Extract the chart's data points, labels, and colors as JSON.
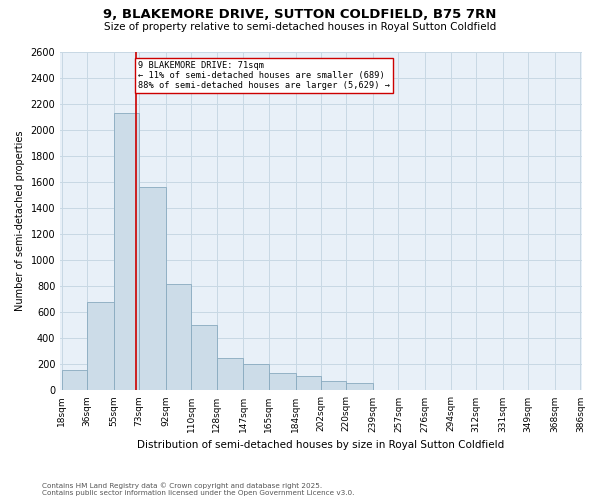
{
  "title": "9, BLAKEMORE DRIVE, SUTTON COLDFIELD, B75 7RN",
  "subtitle": "Size of property relative to semi-detached houses in Royal Sutton Coldfield",
  "xlabel": "Distribution of semi-detached houses by size in Royal Sutton Coldfield",
  "ylabel": "Number of semi-detached properties",
  "bin_labels": [
    "18sqm",
    "36sqm",
    "55sqm",
    "73sqm",
    "92sqm",
    "110sqm",
    "128sqm",
    "147sqm",
    "165sqm",
    "184sqm",
    "202sqm",
    "220sqm",
    "239sqm",
    "257sqm",
    "276sqm",
    "294sqm",
    "312sqm",
    "331sqm",
    "349sqm",
    "368sqm",
    "386sqm"
  ],
  "bin_left_edges": [
    18,
    36,
    55,
    73,
    92,
    110,
    128,
    147,
    165,
    184,
    202,
    220,
    239,
    257,
    276,
    294,
    312,
    331,
    349,
    368
  ],
  "bin_widths": [
    18,
    19,
    18,
    19,
    18,
    18,
    19,
    18,
    19,
    18,
    18,
    19,
    18,
    19,
    18,
    18,
    19,
    18,
    19,
    18
  ],
  "bar_heights": [
    160,
    680,
    2130,
    1560,
    820,
    500,
    250,
    200,
    130,
    110,
    75,
    55,
    0,
    0,
    0,
    0,
    0,
    0,
    0,
    0
  ],
  "bar_color": "#ccdce8",
  "bar_edge_color": "#88aabf",
  "property_value": 71,
  "pct_smaller": 11,
  "n_smaller": 689,
  "pct_larger": 88,
  "n_larger": 5629,
  "vline_color": "#cc0000",
  "ylim": [
    0,
    2600
  ],
  "yticks": [
    0,
    200,
    400,
    600,
    800,
    1000,
    1200,
    1400,
    1600,
    1800,
    2000,
    2200,
    2400,
    2600
  ],
  "grid_color": "#c8d8e4",
  "bg_color": "#e8f0f8",
  "footnote1": "Contains HM Land Registry data © Crown copyright and database right 2025.",
  "footnote2": "Contains public sector information licensed under the Open Government Licence v3.0."
}
